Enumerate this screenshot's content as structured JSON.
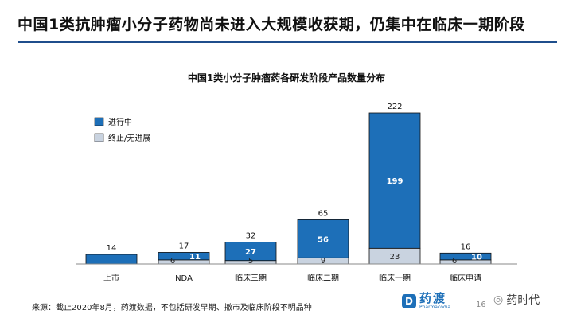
{
  "slide": {
    "title": "中国1类抗肿瘤小分子药物尚未进入大规模收获期，仍集中在临床一期阶段",
    "source": "来源：截止2020年8月，药渡数据，不包括研发早期、撤市及临床阶段不明品种",
    "page_number": "16",
    "logo_text": "药渡",
    "logo_sub": "Pharmacodia",
    "logo_mark": "D",
    "watermark_text": "药时代"
  },
  "chart_data": {
    "type": "bar",
    "stacked": true,
    "title": "中国1类小分子肿瘤药各研发阶段产品数量分布",
    "categories": [
      "上市",
      "NDA",
      "临床三期",
      "临床二期",
      "临床一期",
      "临床申请"
    ],
    "series": [
      {
        "name": "进行中",
        "color": "#1d6fb8",
        "values": [
          14,
          11,
          27,
          56,
          199,
          10
        ]
      },
      {
        "name": "终止/无进展",
        "color": "#c9d3e0",
        "values": [
          0,
          6,
          5,
          9,
          23,
          6
        ]
      }
    ],
    "totals": [
      14,
      17,
      32,
      65,
      222,
      16
    ],
    "segment_labels": [
      [
        "",
        "11",
        "27",
        "56",
        "199",
        "10"
      ],
      [
        "",
        "6",
        "5",
        "9",
        "23",
        "6"
      ]
    ],
    "ylim": [
      0,
      222
    ],
    "legend_position": "top-left",
    "grid": false
  }
}
